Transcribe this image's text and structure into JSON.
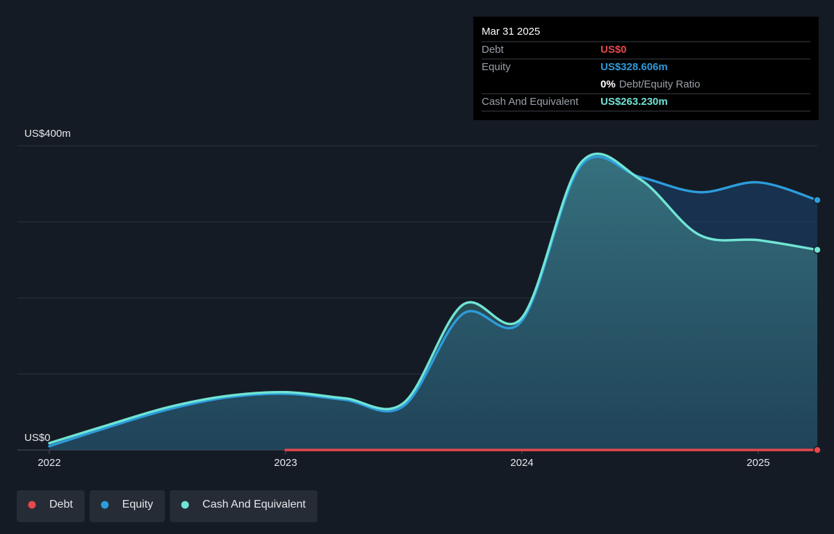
{
  "chart_data": {
    "type": "line",
    "x": [
      2022.0,
      2022.25,
      2022.5,
      2022.75,
      2023.0,
      2023.25,
      2023.5,
      2023.75,
      2024.0,
      2024.25,
      2024.5,
      2024.75,
      2025.0,
      2025.25
    ],
    "xlim": [
      2021.865,
      2025.25
    ],
    "xticks": [
      2022,
      2023,
      2024,
      2025
    ],
    "ylim": [
      0,
      400
    ],
    "yticks": [
      {
        "value": 0,
        "label": "US$0"
      },
      100,
      200,
      300,
      {
        "value": 400,
        "label": "US$400m"
      }
    ],
    "grid": true,
    "series": [
      {
        "name": "Debt",
        "color": "#e5484d",
        "values": [
          null,
          null,
          null,
          null,
          0,
          0,
          0,
          0,
          0,
          0,
          0,
          0,
          0,
          0
        ]
      },
      {
        "name": "Equity",
        "color": "#2d9cdb",
        "values": [
          5,
          30,
          53,
          69,
          74,
          66,
          58,
          179,
          170,
          374,
          359,
          339,
          352,
          328.606
        ]
      },
      {
        "name": "Cash And Equivalent",
        "color": "#70e4d4",
        "values": [
          9,
          33,
          56,
          71,
          76,
          68,
          62,
          191,
          174,
          378,
          356,
          283,
          276,
          263.23
        ]
      }
    ],
    "tooltip": {
      "date": "Mar 31 2025",
      "rows": [
        {
          "label": "Debt",
          "value": "US$0"
        },
        {
          "label": "Equity",
          "value": "US$328.606m"
        },
        {
          "ratio": "0%",
          "ratio_label": "Debt/Equity Ratio"
        },
        {
          "label": "Cash And Equivalent",
          "value": "US$263.230m"
        }
      ]
    },
    "legend": "bottom-left"
  }
}
